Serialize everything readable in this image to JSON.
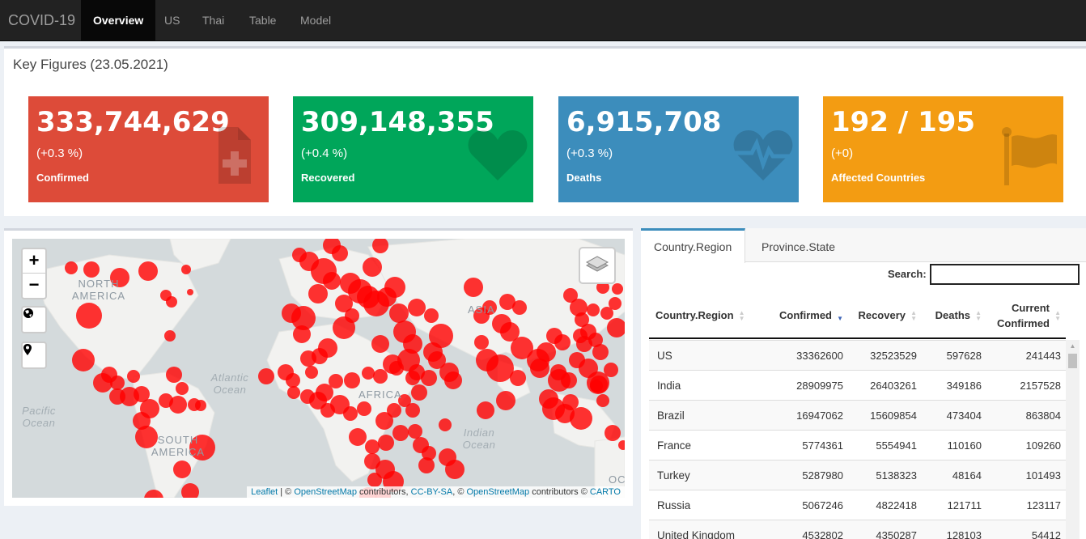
{
  "navbar": {
    "brand": "COVID-19",
    "tabs": [
      {
        "label": "Overview",
        "active": true
      },
      {
        "label": "US",
        "active": false
      },
      {
        "label": "Thai",
        "active": false
      },
      {
        "label": "Table",
        "active": false
      },
      {
        "label": "Model",
        "active": false
      }
    ]
  },
  "key_figures": {
    "title": "Key Figures (23.05.2021)",
    "boxes": [
      {
        "value": "333,744,629",
        "change": "(+0.3 %)",
        "label": "Confirmed",
        "icon": "medical-file-icon",
        "color": "#dd4b39"
      },
      {
        "value": "309,148,355",
        "change": "(+0.4 %)",
        "label": "Recovered",
        "icon": "heart-icon",
        "color": "#00a65a"
      },
      {
        "value": "6,915,708",
        "change": "(+0.3 %)",
        "label": "Deaths",
        "icon": "heartbeat-icon",
        "color": "#3c8dbc"
      },
      {
        "value": "192 / 195",
        "change": "(+0)",
        "label": "Affected Countries",
        "icon": "flag-icon",
        "color": "#f39c12"
      }
    ]
  },
  "map": {
    "zoom_in": "+",
    "zoom_out": "−",
    "labels": {
      "north_america": "NORTH AMERICA",
      "south_america": "SOUTH AMERICA",
      "africa": "AFRICA",
      "asia": "ASIA",
      "atlantic": "Atlantic Ocean",
      "pacific": "Pacific Ocean",
      "indian": "Indian Ocean",
      "edge_ocean": "OC"
    },
    "attribution": {
      "leaflet": "Leaflet",
      "sep1": " | © ",
      "osm1": "OpenStreetMap",
      "text1": " contributors, ",
      "ccbysa": "CC-BY-SA",
      "sep2": ", © ",
      "osm2": "OpenStreetMap",
      "text2": " contributors © ",
      "carto": "CARTO"
    },
    "marker_color": "#ff0000"
  },
  "table_panel": {
    "tabs": [
      {
        "label": "Country.Region",
        "active": true
      },
      {
        "label": "Province.State",
        "active": false
      }
    ],
    "search_label": "Search:",
    "search_value": "",
    "columns": [
      "Country.Region",
      "Confirmed",
      "Recovery",
      "Deaths",
      "Current Confirmed"
    ],
    "sorted_column": "Confirmed",
    "sort_direction": "desc",
    "rows": [
      [
        "US",
        "33362600",
        "32523529",
        "597628",
        "241443"
      ],
      [
        "India",
        "28909975",
        "26403261",
        "349186",
        "2157528"
      ],
      [
        "Brazil",
        "16947062",
        "15609854",
        "473404",
        "863804"
      ],
      [
        "France",
        "5774361",
        "5554941",
        "110160",
        "109260"
      ],
      [
        "Turkey",
        "5287980",
        "5138323",
        "48164",
        "101493"
      ],
      [
        "Russia",
        "5067246",
        "4822418",
        "121711",
        "123117"
      ],
      [
        "United Kingdom",
        "4532802",
        "4350287",
        "128103",
        "54412"
      ]
    ]
  }
}
